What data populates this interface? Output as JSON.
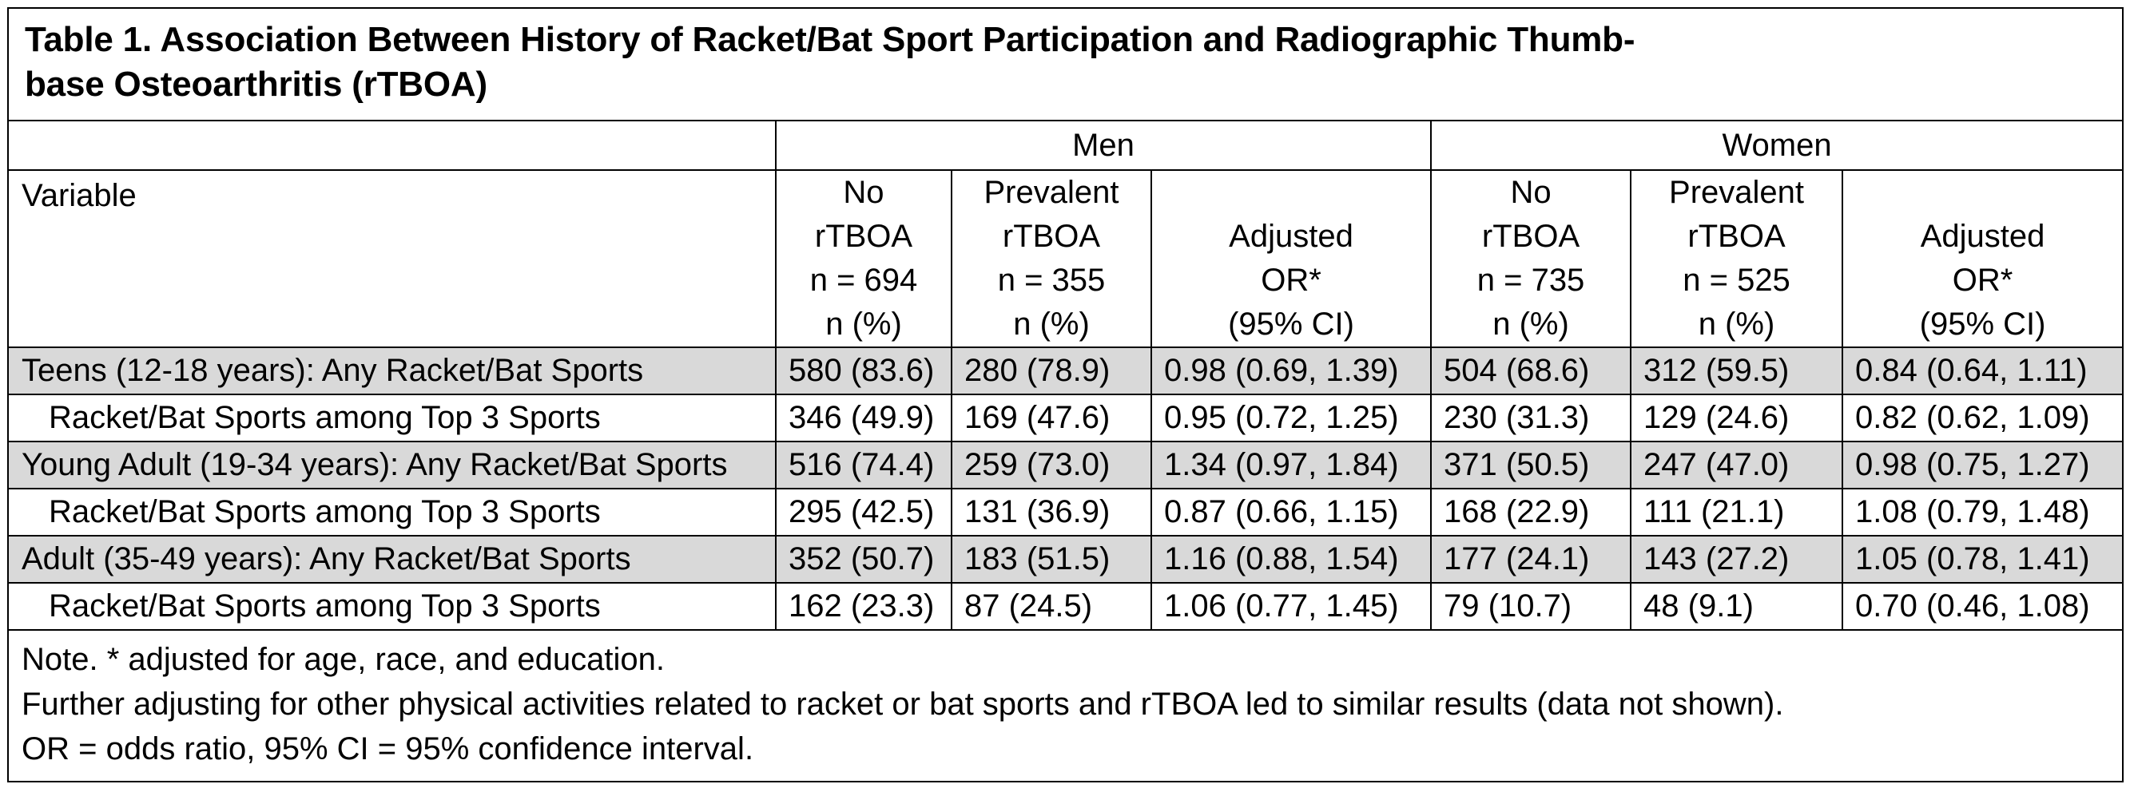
{
  "title_line1": "Table 1. Association Between History of Racket/Bat Sport Participation and Radiographic Thumb-",
  "title_line2": "base Osteoarthritis (rTBOA)",
  "groups": [
    "Men",
    "Women"
  ],
  "variable_header": "Variable",
  "men_header": {
    "no": [
      "No",
      "rTBOA",
      "n = 694",
      "n (%)"
    ],
    "prev": [
      "Prevalent",
      "rTBOA",
      "n = 355",
      "n (%)"
    ],
    "or": [
      "Adjusted",
      "OR*",
      "(95% CI)"
    ]
  },
  "women_header": {
    "no": [
      "No",
      "rTBOA",
      "n = 735",
      "n (%)"
    ],
    "prev": [
      "Prevalent",
      "rTBOA",
      "n = 525",
      "n (%)"
    ],
    "or": [
      "Adjusted",
      "OR*",
      "(95% CI)"
    ]
  },
  "rows": [
    {
      "label": "Teens (12-18 years): Any Racket/Bat Sports",
      "cells": [
        "580 (83.6)",
        "280 (78.9)",
        "0.98 (0.69, 1.39)",
        "504 (68.6)",
        "312 (59.5)",
        "0.84 (0.64, 1.11)"
      ]
    },
    {
      "label": "Racket/Bat Sports among Top 3 Sports",
      "cells": [
        "346 (49.9)",
        "169 (47.6)",
        "0.95 (0.72, 1.25)",
        "230 (31.3)",
        "129 (24.6)",
        "0.82 (0.62, 1.09)"
      ]
    },
    {
      "label": "Young Adult (19-34 years): Any Racket/Bat Sports",
      "cells": [
        "516 (74.4)",
        "259 (73.0)",
        "1.34 (0.97, 1.84)",
        "371 (50.5)",
        "247 (47.0)",
        "0.98 (0.75, 1.27)"
      ]
    },
    {
      "label": "Racket/Bat Sports among Top 3 Sports",
      "cells": [
        "295 (42.5)",
        "131 (36.9)",
        "0.87 (0.66, 1.15)",
        "168 (22.9)",
        "111 (21.1)",
        "1.08 (0.79, 1.48)"
      ]
    },
    {
      "label": "Adult (35-49 years): Any Racket/Bat Sports",
      "cells": [
        "352 (50.7)",
        "183 (51.5)",
        "1.16 (0.88, 1.54)",
        "177 (24.1)",
        "143 (27.2)",
        "1.05 (0.78, 1.41)"
      ]
    },
    {
      "label": "Racket/Bat Sports among Top 3 Sports",
      "cells": [
        "162 (23.3)",
        "87 (24.5)",
        "1.06 (0.77, 1.45)",
        "79 (10.7)",
        "48 (9.1)",
        "0.70 (0.46, 1.08)"
      ]
    }
  ],
  "notes": [
    "Note. * adjusted for age, race, and education.",
    "Further adjusting for other physical activities related to racket or bat sports and rTBOA led to similar results (data not shown).",
    "OR = odds ratio, 95% CI = 95% confidence interval."
  ]
}
